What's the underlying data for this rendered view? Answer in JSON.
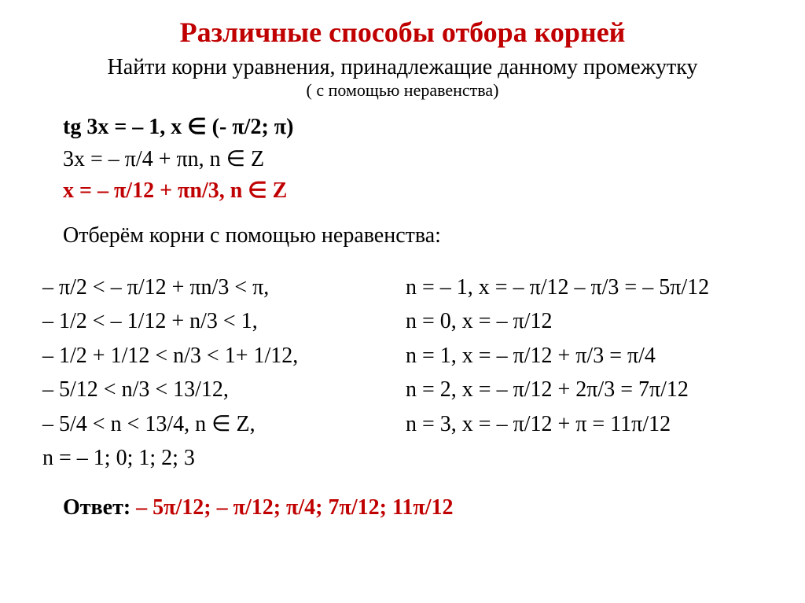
{
  "title": "Различные способы отбора корней",
  "subtitle": "Найти корни уравнения, принадлежащие данному промежутку",
  "subtitle2": "( с помощью неравенства)",
  "problem": {
    "l1": "tg 3x = – 1, x ∈ (- π/2; π)",
    "l2": "3x = – π/4 + πn, n ∈ Z",
    "l3": "x = – π/12 + πn/3, n ∈ Z"
  },
  "section_label": "Отберём корни с помощью неравенства:",
  "left_col": [
    "– π/2 <  – π/12 + πn/3 < π,",
    "– 1/2 <  – 1/12 + n/3 < 1,",
    "– 1/2 + 1/12 <  n/3 < 1+ 1/12,",
    "– 5/12 <  n/3 < 13/12,",
    "– 5/4 <  n < 13/4, n ∈ Z,",
    "n = – 1; 0; 1; 2; 3"
  ],
  "right_col": [
    "n = – 1, x = – π/12 – π/3 = – 5π/12",
    "n = 0, x = – π/12",
    "n = 1, x = – π/12 + π/3 = π/4",
    "n = 2, x = – π/12 + 2π/3 = 7π/12",
    "n = 3, x = – π/12 + π = 11π/12"
  ],
  "answer_label": "Ответ: ",
  "answer_value": "– 5π/12; – π/12; π/4; 7π/12; 11π/12",
  "colors": {
    "accent": "#c00000",
    "text": "#000000",
    "background": "#ffffff"
  },
  "typography": {
    "title_fontsize": 36,
    "body_fontsize": 28,
    "subtitle2_fontsize": 22,
    "font_family": "Times New Roman"
  }
}
